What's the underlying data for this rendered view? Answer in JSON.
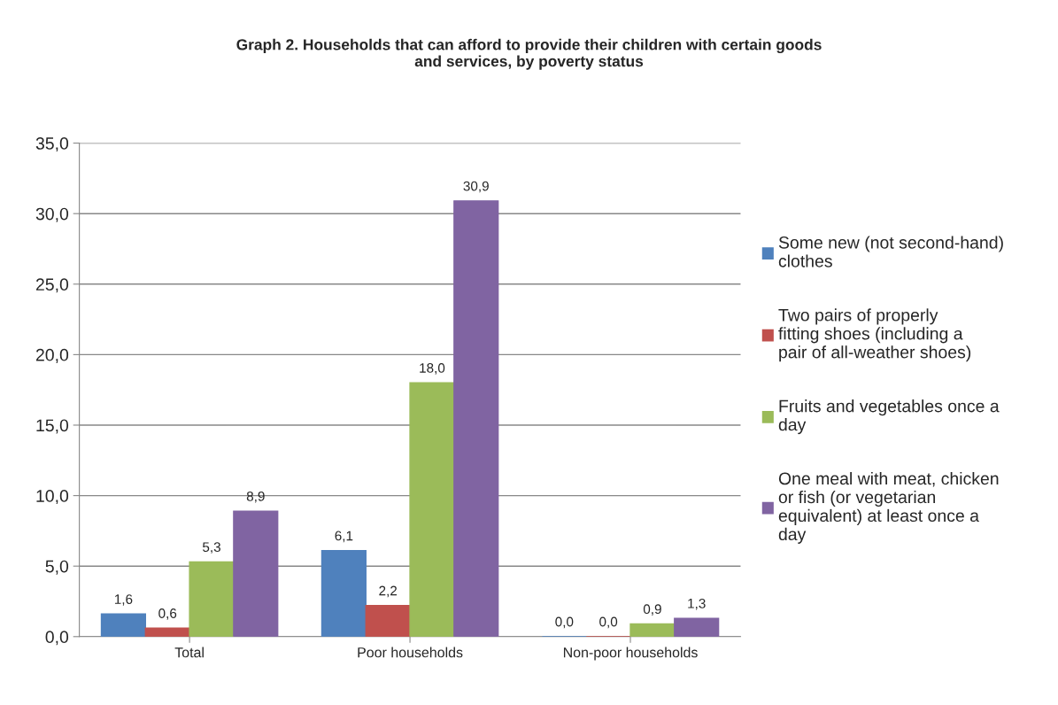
{
  "chart_data": {
    "type": "bar",
    "title": "Graph 2. Households that can afford to provide their children with certain goods and services, by poverty status",
    "categories": [
      "Total",
      "Poor households",
      "Non-poor households"
    ],
    "series": [
      {
        "name": "Some new (not second-hand) clothes",
        "color": "#4f81bd",
        "values": [
          1.6,
          6.1,
          0.0
        ],
        "value_labels": [
          "1,6",
          "6,1",
          "0,0"
        ]
      },
      {
        "name": "Two pairs of properly fitting shoes (including a pair of all-weather shoes)",
        "color": "#c0504d",
        "values": [
          0.6,
          2.2,
          0.0
        ],
        "value_labels": [
          "0,6",
          "2,2",
          "0,0"
        ]
      },
      {
        "name": "Fruits and vegetables once a day",
        "color": "#9bbb59",
        "values": [
          5.3,
          18.0,
          0.9
        ],
        "value_labels": [
          "5,3",
          "18,0",
          "0,9"
        ]
      },
      {
        "name": "One meal with meat, chicken or fish (or vegetarian equivalent) at least once a day",
        "color": "#8064a2",
        "values": [
          8.9,
          30.9,
          1.3
        ],
        "value_labels": [
          "8,9",
          "30,9",
          "1,3"
        ]
      }
    ],
    "ylim": [
      0,
      35
    ],
    "yticks": [
      {
        "value": 0,
        "label": "0,0"
      },
      {
        "value": 5,
        "label": "5,0"
      },
      {
        "value": 10,
        "label": "10,0"
      },
      {
        "value": 15,
        "label": "15,0"
      },
      {
        "value": 20,
        "label": "20,0"
      },
      {
        "value": 25,
        "label": "25,0"
      },
      {
        "value": 30,
        "label": "30,0"
      },
      {
        "value": 35,
        "label": "35,0"
      }
    ],
    "grid": "y",
    "legend": "right"
  }
}
